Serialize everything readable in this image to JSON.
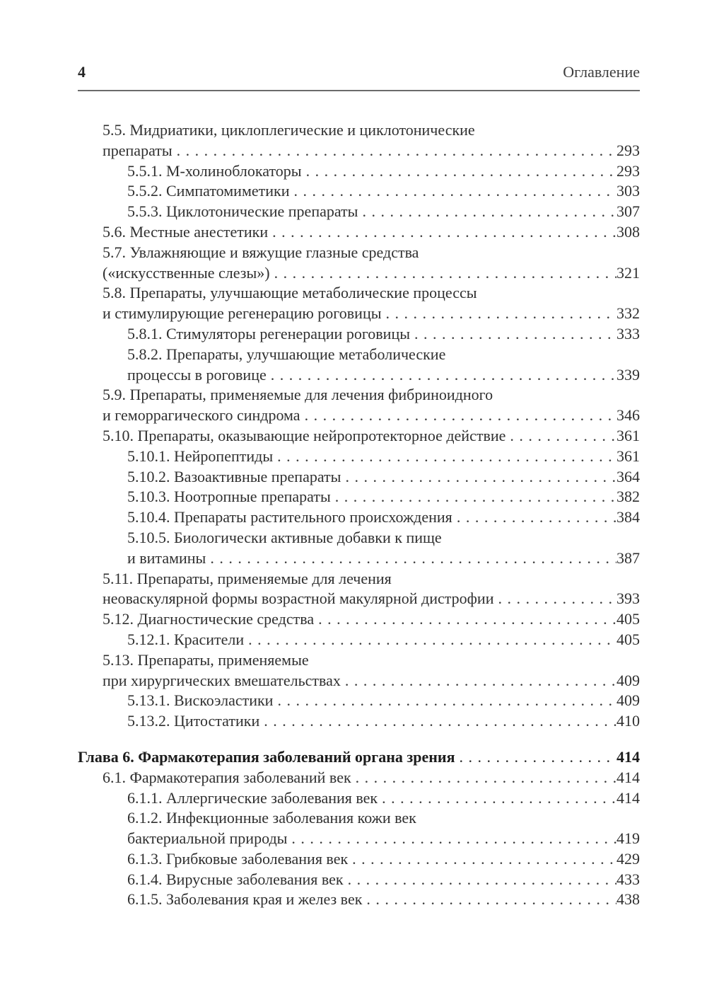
{
  "header": {
    "folio": "4",
    "title": "Оглавление"
  },
  "toc": {
    "entries": [
      {
        "level": 1,
        "lines": [
          "5.5. Мидриатики, циклоплегические и циклотонические",
          "препараты"
        ],
        "page": "293"
      },
      {
        "level": 2,
        "lines": [
          "5.5.1. М-холиноблокаторы"
        ],
        "page": "293"
      },
      {
        "level": 2,
        "lines": [
          "5.5.2. Симпатомиметики"
        ],
        "page": "303"
      },
      {
        "level": 2,
        "lines": [
          "5.5.3. Циклотонические препараты"
        ],
        "page": "307"
      },
      {
        "level": 1,
        "lines": [
          "5.6. Местные анестетики"
        ],
        "page": "308"
      },
      {
        "level": 1,
        "lines": [
          "5.7. Увлажняющие и вяжущие глазные средства",
          "(«искусственные слезы»)"
        ],
        "page": "321"
      },
      {
        "level": 1,
        "lines": [
          "5.8. Препараты, улучшающие метаболические процессы",
          "и стимулирующие регенерацию роговицы"
        ],
        "page": "332"
      },
      {
        "level": 2,
        "lines": [
          "5.8.1. Стимуляторы регенерации роговицы"
        ],
        "page": "333"
      },
      {
        "level": 2,
        "lines": [
          "5.8.2. Препараты, улучшающие метаболические",
          "процессы в роговице"
        ],
        "page": "339"
      },
      {
        "level": 1,
        "lines": [
          "5.9. Препараты, применяемые для лечения фибриноидного",
          "и геморрагического синдрома"
        ],
        "page": "346"
      },
      {
        "level": 1,
        "lines": [
          "5.10. Препараты, оказывающие нейропротекторное действие"
        ],
        "page": "361"
      },
      {
        "level": 2,
        "lines": [
          "5.10.1. Нейропептиды"
        ],
        "page": "361"
      },
      {
        "level": 2,
        "lines": [
          "5.10.2. Вазоактивные препараты"
        ],
        "page": "364"
      },
      {
        "level": 2,
        "lines": [
          "5.10.3. Ноотропные препараты"
        ],
        "page": "382"
      },
      {
        "level": 2,
        "lines": [
          "5.10.4. Препараты растительного происхождения"
        ],
        "page": "384"
      },
      {
        "level": 2,
        "lines": [
          "5.10.5. Биологически активные добавки к пище",
          "и витамины"
        ],
        "page": "387"
      },
      {
        "level": 1,
        "lines": [
          "5.11. Препараты, применяемые для лечения",
          "неоваскулярной формы возрастной макулярной дистрофии"
        ],
        "page": "393"
      },
      {
        "level": 1,
        "lines": [
          "5.12. Диагностические средства"
        ],
        "page": "405"
      },
      {
        "level": 2,
        "lines": [
          "5.12.1. Красители"
        ],
        "page": "405"
      },
      {
        "level": 1,
        "lines": [
          "5.13. Препараты, применяемые",
          "при хирургических вмешательствах"
        ],
        "page": "409"
      },
      {
        "level": 2,
        "lines": [
          "5.13.1. Вискоэластики"
        ],
        "page": "409"
      },
      {
        "level": 2,
        "lines": [
          "5.13.2. Цитостатики"
        ],
        "page": "410"
      },
      {
        "level": 0,
        "bold": true,
        "lines": [
          "Глава 6. Фармакотерапия заболеваний органа зрения"
        ],
        "page": "414"
      },
      {
        "level": 1,
        "lines": [
          "6.1. Фармакотерапия заболеваний век"
        ],
        "page": "414"
      },
      {
        "level": 2,
        "lines": [
          "6.1.1. Аллергические заболевания век"
        ],
        "page": "414"
      },
      {
        "level": 2,
        "lines": [
          "6.1.2. Инфекционные заболевания кожи век",
          "бактериальной природы"
        ],
        "page": "419"
      },
      {
        "level": 2,
        "lines": [
          "6.1.3. Грибковые заболевания век"
        ],
        "page": "429"
      },
      {
        "level": 2,
        "lines": [
          "6.1.4. Вирусные заболевания век"
        ],
        "page": "433"
      },
      {
        "level": 2,
        "lines": [
          "6.1.5. Заболевания края и желез век"
        ],
        "page": "438"
      }
    ]
  }
}
